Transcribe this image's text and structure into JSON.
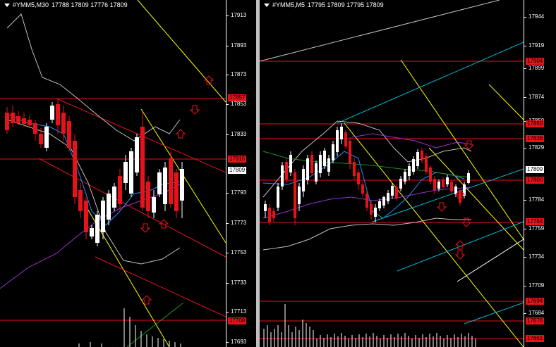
{
  "left_chart": {
    "symbol": "#YMM5,M30",
    "ohlc": "17788 17809 17776 17809",
    "axis_ticks": [
      "17913",
      "17893",
      "17873",
      "17853",
      "17833",
      "17793",
      "17773",
      "17753",
      "17733",
      "17713",
      "17693"
    ],
    "price_tags": [
      {
        "text": "17857",
        "style": "red"
      },
      {
        "text": "17816",
        "style": "red"
      },
      {
        "text": "17809",
        "style": "white"
      },
      {
        "text": "17708",
        "style": "red"
      }
    ]
  },
  "right_chart": {
    "symbol": "#YMM5,M5",
    "ohlc": "17795 17809 17795 17809",
    "axis_ticks": [
      "17944",
      "17919",
      "17899",
      "17874",
      "17850",
      "17829",
      "17784",
      "17759",
      "17734",
      "17709",
      "17684"
    ],
    "price_tags": [
      {
        "text": "17904",
        "style": "red"
      },
      {
        "text": "17850",
        "style": "red"
      },
      {
        "text": "17836",
        "style": "red"
      },
      {
        "text": "17809",
        "style": "white"
      },
      {
        "text": "17800",
        "style": "red"
      },
      {
        "text": "17764",
        "style": "red"
      },
      {
        "text": "17694",
        "style": "red"
      },
      {
        "text": "17676",
        "style": "red"
      },
      {
        "text": "17661",
        "style": "red"
      }
    ]
  },
  "colors": {
    "background": "#000000",
    "bull": "#ffffff",
    "bear": "#e8121a",
    "channel": "#ffff00",
    "cyan": "#00bcd4",
    "band": "#c0c0c0",
    "ma_purple": "#9932cc",
    "ma_blue": "#1e90ff",
    "ma_green": "#228b22"
  }
}
